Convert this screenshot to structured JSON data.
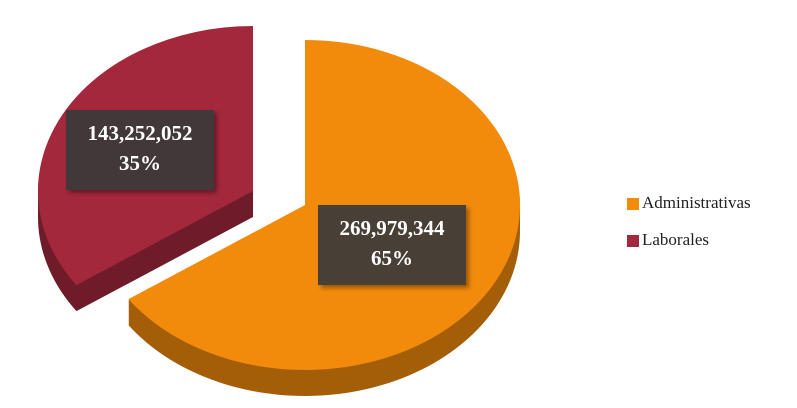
{
  "chart_data": {
    "type": "pie",
    "categories": [
      "Administrativas",
      "Laborales"
    ],
    "values": [
      269979344,
      143252052
    ],
    "value_labels": [
      "269,979,344",
      "143,252,052"
    ],
    "percent_labels": [
      "65%",
      "35%"
    ],
    "colors": [
      "#f28a0c",
      "#a3283c"
    ],
    "legend": "right"
  }
}
